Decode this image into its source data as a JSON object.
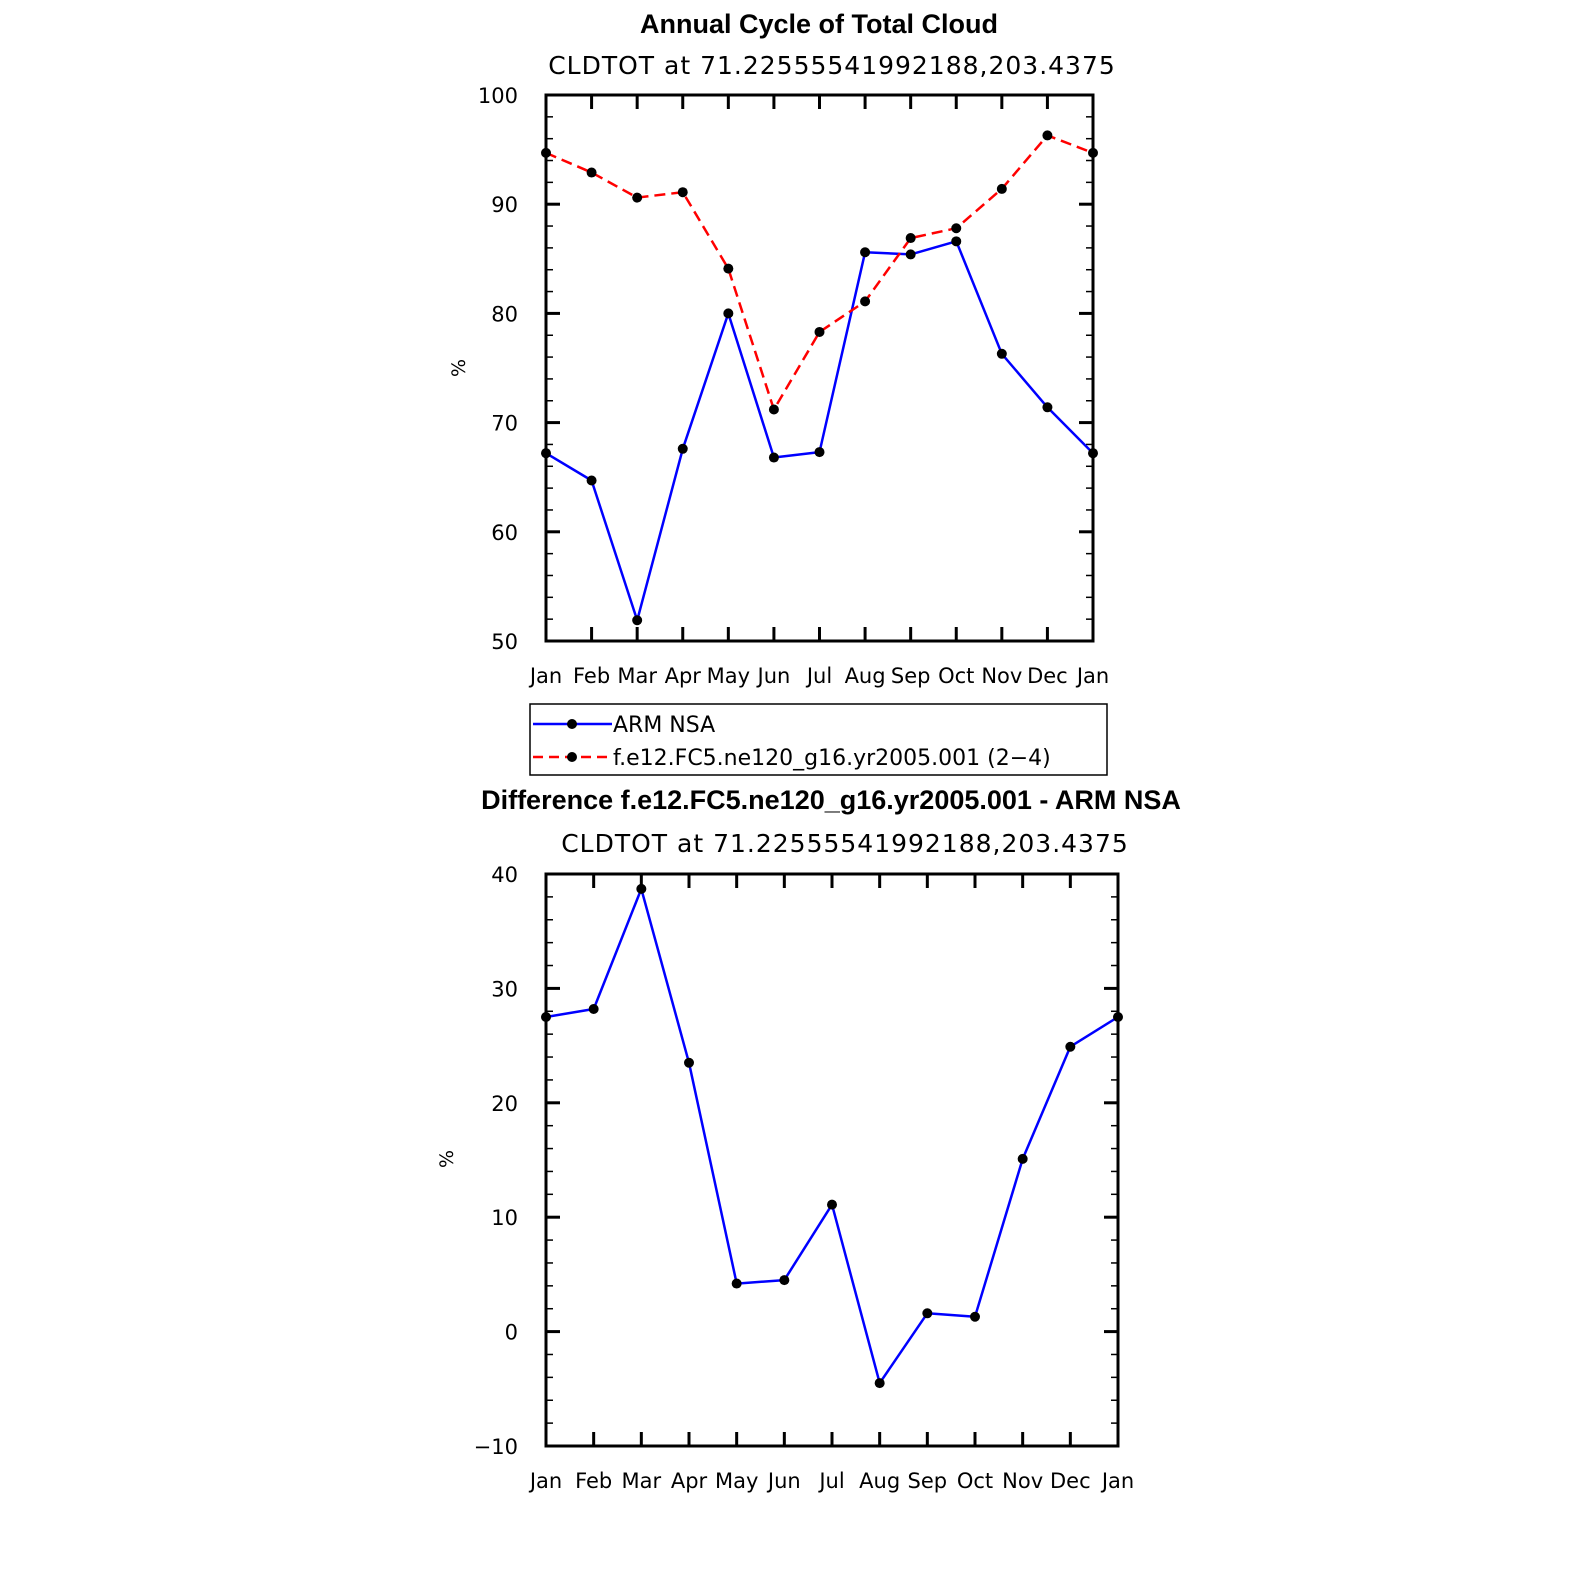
{
  "chart_data": [
    {
      "type": "line",
      "title": "Annual Cycle of Total Cloud",
      "subtitle": "CLDTOT at 71.22555541992188,203.4375",
      "xlabel": "",
      "ylabel": "%",
      "ylim": [
        50,
        100
      ],
      "yticks": [
        "50",
        "60",
        "70",
        "80",
        "90",
        "100"
      ],
      "categories": [
        "Jan",
        "Feb",
        "Mar",
        "Apr",
        "May",
        "Jun",
        "Jul",
        "Aug",
        "Sep",
        "Oct",
        "Nov",
        "Dec",
        "Jan"
      ],
      "series": [
        {
          "name": "ARM NSA",
          "color": "#0000ff",
          "dash": "solid",
          "values": [
            67.2,
            64.7,
            51.9,
            67.6,
            80.0,
            66.8,
            67.3,
            85.6,
            85.4,
            86.6,
            76.3,
            71.4,
            67.2
          ]
        },
        {
          "name": "f.e12.FC5.ne120_g16.yr2005.001 (2−4)",
          "color": "#ff0000",
          "dash": "dashed",
          "values": [
            94.7,
            92.9,
            90.6,
            91.1,
            84.1,
            71.2,
            78.3,
            81.1,
            86.9,
            87.8,
            91.4,
            96.3,
            94.7
          ]
        }
      ],
      "legend": {
        "position": "bottom",
        "entries": [
          "ARM NSA",
          "f.e12.FC5.ne120_g16.yr2005.001 (2−4)"
        ]
      }
    },
    {
      "type": "line",
      "title": "Difference f.e12.FC5.ne120_g16.yr2005.001 - ARM NSA",
      "subtitle": "CLDTOT at 71.22555541992188,203.4375",
      "xlabel": "",
      "ylabel": "%",
      "ylim": [
        -10,
        40
      ],
      "yticks": [
        "−10",
        "0",
        "10",
        "20",
        "30",
        "40"
      ],
      "categories": [
        "Jan",
        "Feb",
        "Mar",
        "Apr",
        "May",
        "Jun",
        "Jul",
        "Aug",
        "Sep",
        "Oct",
        "Nov",
        "Dec",
        "Jan"
      ],
      "series": [
        {
          "name": "difference",
          "color": "#0000ff",
          "dash": "solid",
          "values": [
            27.5,
            28.2,
            38.7,
            23.5,
            4.2,
            4.5,
            11.1,
            -4.5,
            1.6,
            1.3,
            15.1,
            24.9,
            27.5
          ]
        }
      ]
    }
  ]
}
